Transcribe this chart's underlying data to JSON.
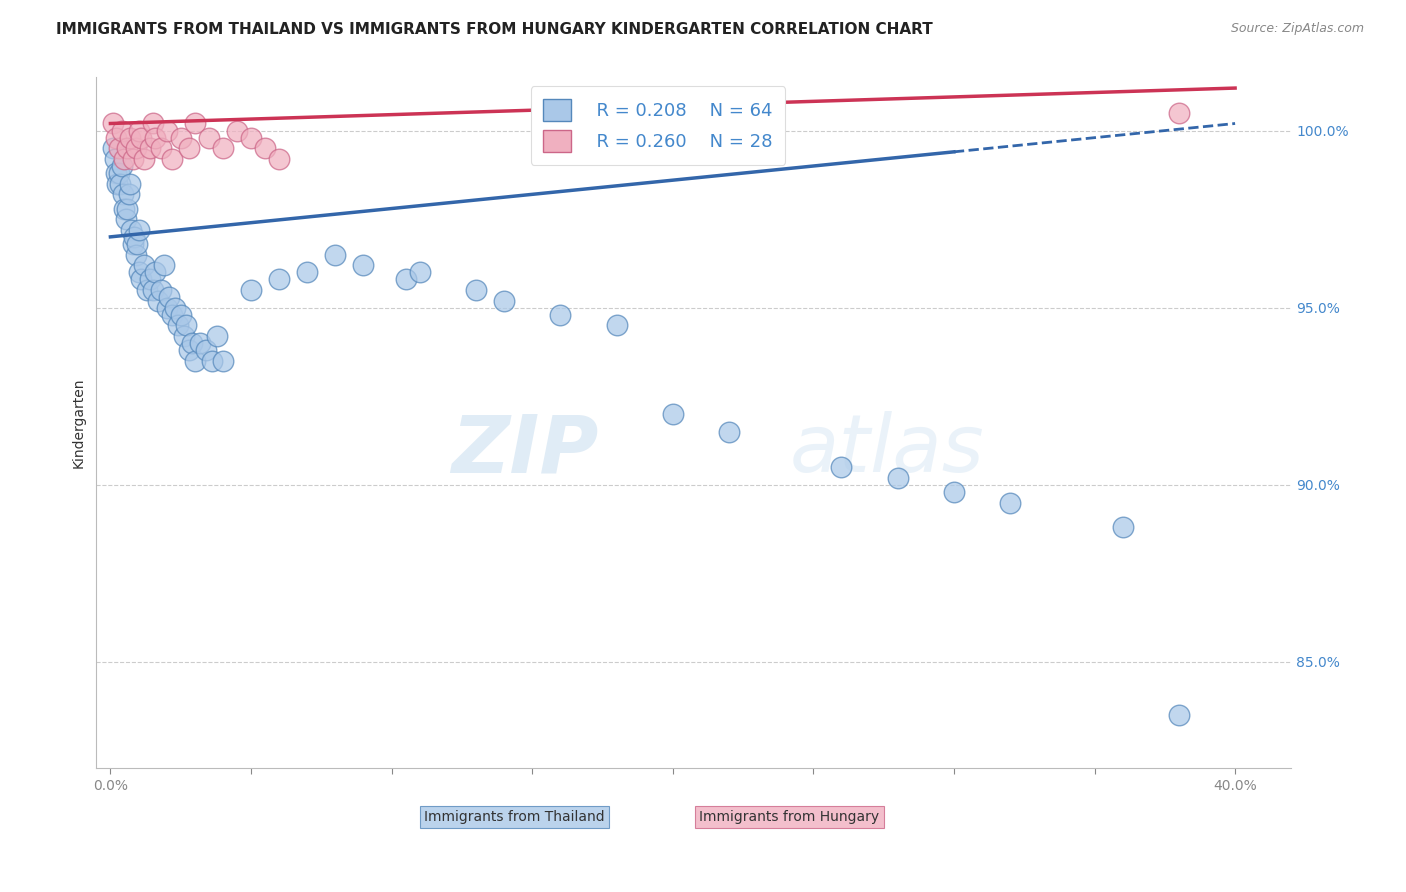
{
  "title": "IMMIGRANTS FROM THAILAND VS IMMIGRANTS FROM HUNGARY KINDERGARTEN CORRELATION CHART",
  "source": "Source: ZipAtlas.com",
  "ylabel": "Kindergarten",
  "ylim": [
    82.0,
    101.5
  ],
  "xlim": [
    -0.5,
    42.0
  ],
  "thailand_color": "#aac8e8",
  "hungary_color": "#f0b0c0",
  "thailand_edge": "#5588bb",
  "hungary_edge": "#cc6688",
  "line_thailand_color": "#3366aa",
  "line_hungary_color": "#cc3355",
  "legend_r_thailand": "R = 0.208",
  "legend_n_thailand": "N = 64",
  "legend_r_hungary": "R = 0.260",
  "legend_n_hungary": "N = 28",
  "thailand_x": [
    0.1,
    0.15,
    0.2,
    0.25,
    0.3,
    0.35,
    0.4,
    0.45,
    0.5,
    0.55,
    0.6,
    0.65,
    0.7,
    0.75,
    0.8,
    0.85,
    0.9,
    0.95,
    1.0,
    1.0,
    1.1,
    1.2,
    1.3,
    1.4,
    1.5,
    1.6,
    1.7,
    1.8,
    1.9,
    2.0,
    2.1,
    2.2,
    2.3,
    2.4,
    2.5,
    2.6,
    2.7,
    2.8,
    2.9,
    3.0,
    3.2,
    3.4,
    3.6,
    3.8,
    4.0,
    5.0,
    6.0,
    7.0,
    8.0,
    9.0,
    10.5,
    11.0,
    13.0,
    14.0,
    16.0,
    18.0,
    20.0,
    22.0,
    26.0,
    28.0,
    30.0,
    32.0,
    36.0,
    38.0
  ],
  "thailand_y": [
    99.5,
    99.2,
    98.8,
    98.5,
    98.8,
    98.5,
    99.0,
    98.2,
    97.8,
    97.5,
    97.8,
    98.2,
    98.5,
    97.2,
    96.8,
    97.0,
    96.5,
    96.8,
    97.2,
    96.0,
    95.8,
    96.2,
    95.5,
    95.8,
    95.5,
    96.0,
    95.2,
    95.5,
    96.2,
    95.0,
    95.3,
    94.8,
    95.0,
    94.5,
    94.8,
    94.2,
    94.5,
    93.8,
    94.0,
    93.5,
    94.0,
    93.8,
    93.5,
    94.2,
    93.5,
    95.5,
    95.8,
    96.0,
    96.5,
    96.2,
    95.8,
    96.0,
    95.5,
    95.2,
    94.8,
    94.5,
    92.0,
    91.5,
    90.5,
    90.2,
    89.8,
    89.5,
    88.8,
    83.5
  ],
  "hungary_x": [
    0.1,
    0.2,
    0.3,
    0.4,
    0.5,
    0.6,
    0.7,
    0.8,
    0.9,
    1.0,
    1.1,
    1.2,
    1.4,
    1.5,
    1.6,
    1.8,
    2.0,
    2.2,
    2.5,
    2.8,
    3.0,
    3.5,
    4.0,
    4.5,
    5.0,
    5.5,
    6.0,
    38.0
  ],
  "hungary_y": [
    100.2,
    99.8,
    99.5,
    100.0,
    99.2,
    99.5,
    99.8,
    99.2,
    99.5,
    100.0,
    99.8,
    99.2,
    99.5,
    100.2,
    99.8,
    99.5,
    100.0,
    99.2,
    99.8,
    99.5,
    100.2,
    99.8,
    99.5,
    100.0,
    99.8,
    99.5,
    99.2,
    100.5
  ],
  "line_thai_x0": 0.0,
  "line_thai_y0": 97.0,
  "line_thai_x1": 40.0,
  "line_thai_y1": 100.2,
  "line_hung_x0": 0.0,
  "line_hung_y0": 100.2,
  "line_hung_x1": 40.0,
  "line_hung_y1": 101.2,
  "watermark_zip": "ZIP",
  "watermark_atlas": "atlas",
  "background_color": "#ffffff",
  "grid_color": "#cccccc",
  "title_fontsize": 11,
  "axis_label_fontsize": 10,
  "tick_fontsize": 10,
  "legend_fontsize": 13,
  "right_tick_color": "#4488cc",
  "y_ticks": [
    85.0,
    90.0,
    95.0,
    100.0
  ],
  "y_tick_labels": [
    "85.0%",
    "90.0%",
    "95.0%",
    "100.0%"
  ]
}
